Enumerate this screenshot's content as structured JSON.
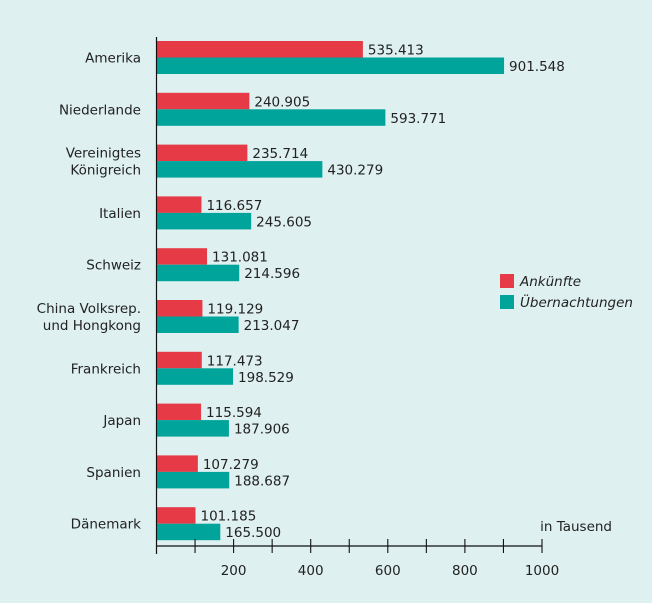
{
  "chart_data": {
    "type": "bar",
    "orientation": "horizontal",
    "background_color": "#dff0f0",
    "categories": [
      [
        "Amerika"
      ],
      [
        "Niederlande"
      ],
      [
        "Vereinigtes",
        "Königreich"
      ],
      [
        "Italien"
      ],
      [
        "Schweiz"
      ],
      [
        "China Volksrep.",
        "und Hongkong"
      ],
      [
        "Frankreich"
      ],
      [
        "Japan"
      ],
      [
        "Spanien"
      ],
      [
        "Dänemark"
      ]
    ],
    "series": [
      {
        "name": "Ankünfte",
        "color": "#e63a46",
        "values": [
          535.413,
          240.905,
          235.714,
          116.657,
          131.081,
          119.129,
          117.473,
          115.594,
          107.279,
          101.185
        ],
        "labels": [
          "535.413",
          "240.905",
          "235.714",
          "116.657",
          "131.081",
          "119.129",
          "117.473",
          "115.594",
          "107.279",
          "101.185"
        ]
      },
      {
        "name": "Übernachtungen",
        "color": "#00a49a",
        "values": [
          901.548,
          593.771,
          430.279,
          245.605,
          214.596,
          213.047,
          198.529,
          187.906,
          188.687,
          165.5
        ],
        "labels": [
          "901.548",
          "593.771",
          "430.279",
          "245.605",
          "214.596",
          "213.047",
          "198.529",
          "187.906",
          "188.687",
          "165.500"
        ]
      }
    ],
    "xlim": [
      0,
      1000
    ],
    "xticks": [
      200,
      400,
      600,
      800,
      1000
    ],
    "xtick_labels": [
      "200",
      "400",
      "600",
      "800",
      "1000"
    ],
    "minor_ticks_every": 100,
    "unit_label": "in Tausend",
    "legend_position": "right"
  }
}
